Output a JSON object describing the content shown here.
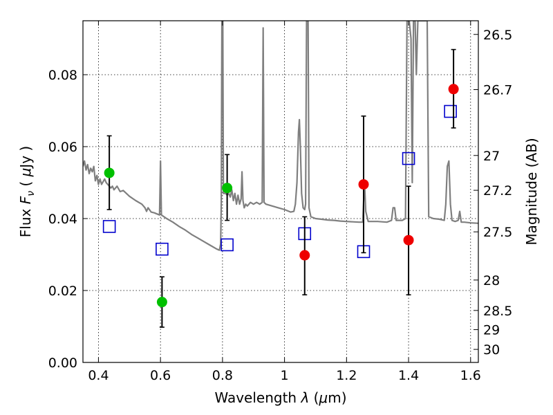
{
  "chart_data": {
    "type": "scatter",
    "xlabel": {
      "pre": "Wavelength ",
      "sym": "λ",
      "open": " (",
      "mu": "μ",
      "post": "m)"
    },
    "ylabel": {
      "pre": "Flux ",
      "sym": "F",
      "sub": "ν",
      "open": " ( ",
      "mu": "μ",
      "post": "Jy )"
    },
    "y2label": "Magnitude (AB)",
    "xlim": [
      0.35,
      1.625
    ],
    "ylim": [
      0.0,
      0.095
    ],
    "grid": true,
    "x_ticks": [
      {
        "value": 0.4,
        "label": "0.4"
      },
      {
        "value": 0.6,
        "label": "0.6"
      },
      {
        "value": 0.8,
        "label": "0.8"
      },
      {
        "value": 1.0,
        "label": "1"
      },
      {
        "value": 1.2,
        "label": "1.2"
      },
      {
        "value": 1.4,
        "label": "1.4"
      },
      {
        "value": 1.6,
        "label": "1.6"
      }
    ],
    "y_ticks": [
      {
        "value": 0.0,
        "label": "0.00"
      },
      {
        "value": 0.02,
        "label": "0.02"
      },
      {
        "value": 0.04,
        "label": "0.04"
      },
      {
        "value": 0.06,
        "label": "0.06"
      },
      {
        "value": 0.08,
        "label": "0.08"
      }
    ],
    "mag_ticks": [
      {
        "value": 26.5,
        "label": "26.5"
      },
      {
        "value": 26.7,
        "label": "26.7"
      },
      {
        "value": 27.0,
        "label": "27"
      },
      {
        "value": 27.2,
        "label": "27.2"
      },
      {
        "value": 27.5,
        "label": "27.5"
      },
      {
        "value": 28.0,
        "label": "28"
      },
      {
        "value": 28.5,
        "label": "28.5"
      },
      {
        "value": 29.0,
        "label": "29"
      },
      {
        "value": 30.0,
        "label": "30"
      }
    ],
    "series": [
      {
        "kind": "spectrum",
        "color": "#7f7f7f",
        "points": [
          [
            0.35,
            0.0545
          ],
          [
            0.355,
            0.056
          ],
          [
            0.36,
            0.0535
          ],
          [
            0.365,
            0.055
          ],
          [
            0.37,
            0.0525
          ],
          [
            0.375,
            0.054
          ],
          [
            0.38,
            0.053
          ],
          [
            0.385,
            0.0545
          ],
          [
            0.39,
            0.0505
          ],
          [
            0.395,
            0.052
          ],
          [
            0.4,
            0.0495
          ],
          [
            0.405,
            0.051
          ],
          [
            0.41,
            0.0495
          ],
          [
            0.42,
            0.051
          ],
          [
            0.425,
            0.05
          ],
          [
            0.43,
            0.0495
          ],
          [
            0.44,
            0.0485
          ],
          [
            0.445,
            0.049
          ],
          [
            0.45,
            0.048
          ],
          [
            0.46,
            0.049
          ],
          [
            0.47,
            0.0475
          ],
          [
            0.48,
            0.0478
          ],
          [
            0.5,
            0.0462
          ],
          [
            0.52,
            0.045
          ],
          [
            0.54,
            0.044
          ],
          [
            0.55,
            0.043
          ],
          [
            0.555,
            0.042
          ],
          [
            0.56,
            0.043
          ],
          [
            0.57,
            0.0418
          ],
          [
            0.58,
            0.0416
          ],
          [
            0.597,
            0.041
          ],
          [
            0.6,
            0.056
          ],
          [
            0.603,
            0.041
          ],
          [
            0.62,
            0.04
          ],
          [
            0.64,
            0.039
          ],
          [
            0.66,
            0.0378
          ],
          [
            0.68,
            0.0368
          ],
          [
            0.7,
            0.0356
          ],
          [
            0.72,
            0.0346
          ],
          [
            0.74,
            0.0336
          ],
          [
            0.76,
            0.0326
          ],
          [
            0.78,
            0.0316
          ],
          [
            0.79,
            0.0312
          ],
          [
            0.794,
            0.033
          ],
          [
            0.796,
            0.0445
          ],
          [
            0.798,
            0.095
          ],
          [
            0.801,
            0.095
          ],
          [
            0.803,
            0.047
          ],
          [
            0.81,
            0.047
          ],
          [
            0.815,
            0.0465
          ],
          [
            0.82,
            0.047
          ],
          [
            0.825,
            0.046
          ],
          [
            0.83,
            0.048
          ],
          [
            0.835,
            0.045
          ],
          [
            0.84,
            0.047
          ],
          [
            0.845,
            0.044
          ],
          [
            0.85,
            0.0465
          ],
          [
            0.855,
            0.044
          ],
          [
            0.86,
            0.0455
          ],
          [
            0.863,
            0.053
          ],
          [
            0.866,
            0.045
          ],
          [
            0.87,
            0.043
          ],
          [
            0.875,
            0.044
          ],
          [
            0.88,
            0.0435
          ],
          [
            0.89,
            0.0445
          ],
          [
            0.9,
            0.044
          ],
          [
            0.91,
            0.0445
          ],
          [
            0.92,
            0.044
          ],
          [
            0.928,
            0.0445
          ],
          [
            0.931,
            0.093
          ],
          [
            0.934,
            0.0445
          ],
          [
            0.94,
            0.044
          ],
          [
            0.96,
            0.0435
          ],
          [
            0.98,
            0.043
          ],
          [
            1.0,
            0.0425
          ],
          [
            1.02,
            0.0418
          ],
          [
            1.03,
            0.042
          ],
          [
            1.035,
            0.044
          ],
          [
            1.04,
            0.05
          ],
          [
            1.045,
            0.064
          ],
          [
            1.048,
            0.0675
          ],
          [
            1.051,
            0.06
          ],
          [
            1.055,
            0.047
          ],
          [
            1.06,
            0.043
          ],
          [
            1.065,
            0.0425
          ],
          [
            1.068,
            0.044
          ],
          [
            1.071,
            0.095
          ],
          [
            1.076,
            0.095
          ],
          [
            1.079,
            0.043
          ],
          [
            1.085,
            0.0405
          ],
          [
            1.1,
            0.04
          ],
          [
            1.12,
            0.0398
          ],
          [
            1.14,
            0.0396
          ],
          [
            1.16,
            0.0395
          ],
          [
            1.18,
            0.0393
          ],
          [
            1.2,
            0.0392
          ],
          [
            1.22,
            0.0391
          ],
          [
            1.24,
            0.039
          ],
          [
            1.252,
            0.039
          ],
          [
            1.256,
            0.047
          ],
          [
            1.259,
            0.048
          ],
          [
            1.262,
            0.042
          ],
          [
            1.27,
            0.0392
          ],
          [
            1.3,
            0.0392
          ],
          [
            1.33,
            0.039
          ],
          [
            1.345,
            0.0395
          ],
          [
            1.35,
            0.043
          ],
          [
            1.355,
            0.043
          ],
          [
            1.36,
            0.0395
          ],
          [
            1.38,
            0.0395
          ],
          [
            1.39,
            0.04
          ],
          [
            1.395,
            0.095
          ],
          [
            1.402,
            0.095
          ],
          [
            1.408,
            0.09
          ],
          [
            1.412,
            0.05
          ],
          [
            1.416,
            0.095
          ],
          [
            1.421,
            0.095
          ],
          [
            1.425,
            0.08
          ],
          [
            1.43,
            0.095
          ],
          [
            1.455,
            0.095
          ],
          [
            1.46,
            0.095
          ],
          [
            1.465,
            0.0405
          ],
          [
            1.48,
            0.04
          ],
          [
            1.5,
            0.0398
          ],
          [
            1.515,
            0.0395
          ],
          [
            1.52,
            0.044
          ],
          [
            1.525,
            0.0545
          ],
          [
            1.53,
            0.056
          ],
          [
            1.535,
            0.044
          ],
          [
            1.54,
            0.0395
          ],
          [
            1.55,
            0.0392
          ],
          [
            1.56,
            0.0395
          ],
          [
            1.565,
            0.042
          ],
          [
            1.57,
            0.039
          ],
          [
            1.58,
            0.039
          ],
          [
            1.6,
            0.0388
          ],
          [
            1.625,
            0.0387
          ]
        ]
      },
      {
        "kind": "model-photometry",
        "marker": "open-square",
        "color": "#0000cc",
        "points": [
          [
            0.435,
            0.0378
          ],
          [
            0.605,
            0.0315
          ],
          [
            0.815,
            0.0327
          ],
          [
            1.065,
            0.0358
          ],
          [
            1.255,
            0.0308
          ],
          [
            1.4,
            0.0567
          ],
          [
            1.535,
            0.0698
          ]
        ]
      },
      {
        "kind": "observed-detections",
        "marker": "filled-circle",
        "color": "#00c000",
        "points": [
          {
            "x": 0.435,
            "y": 0.0527,
            "ylo": 0.0425,
            "yhi": 0.063
          },
          {
            "x": 0.605,
            "y": 0.0168,
            "ylo": 0.0098,
            "yhi": 0.0238
          },
          {
            "x": 0.815,
            "y": 0.0485,
            "ylo": 0.0395,
            "yhi": 0.0578
          }
        ]
      },
      {
        "kind": "observed-detections",
        "marker": "filled-circle",
        "color": "#ee0000",
        "points": [
          {
            "x": 1.065,
            "y": 0.0298,
            "ylo": 0.0188,
            "yhi": 0.0405
          },
          {
            "x": 1.255,
            "y": 0.0495,
            "ylo": 0.0305,
            "yhi": 0.0685
          },
          {
            "x": 1.4,
            "y": 0.034,
            "ylo": 0.0188,
            "yhi": 0.049
          },
          {
            "x": 1.545,
            "y": 0.076,
            "ylo": 0.0652,
            "yhi": 0.087
          }
        ]
      }
    ]
  }
}
